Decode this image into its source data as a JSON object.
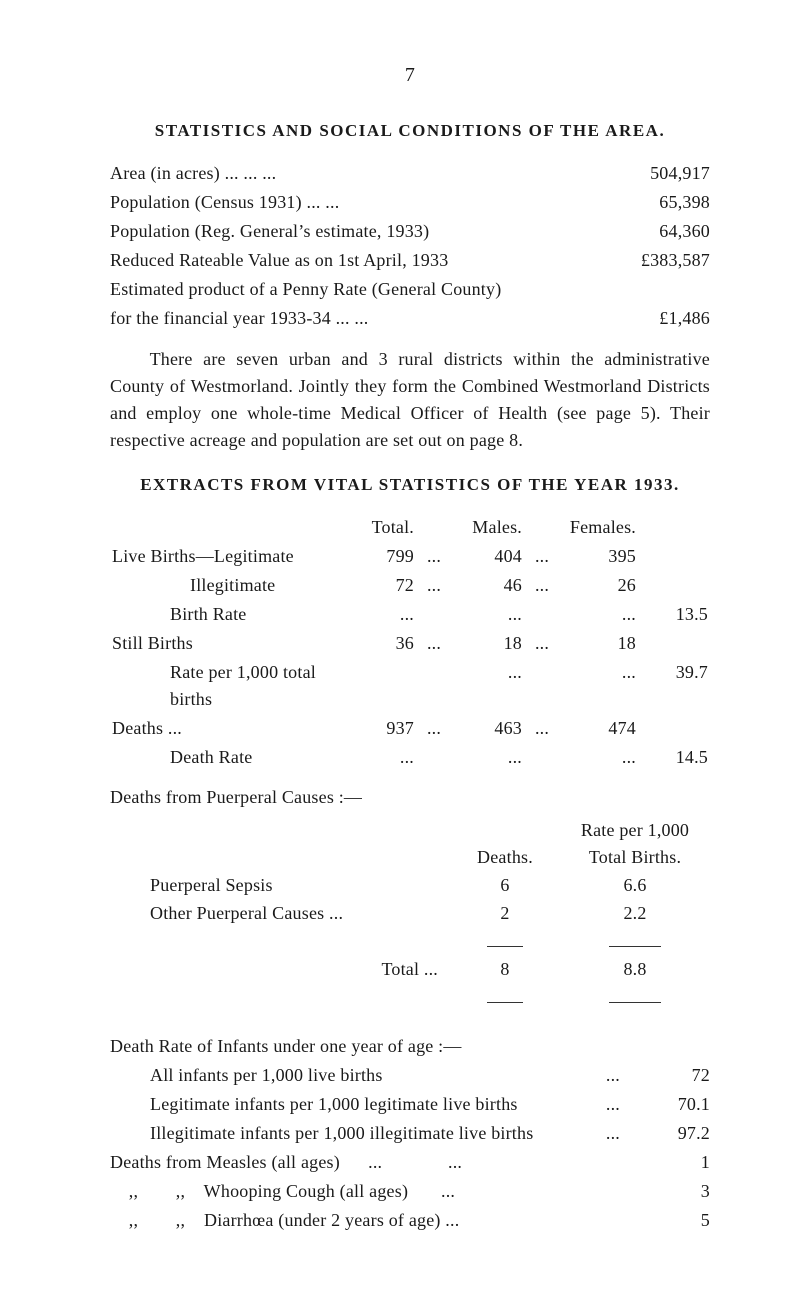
{
  "page_number": "7",
  "heading1": "STATISTICS AND SOCIAL CONDITIONS OF THE AREA.",
  "area_stats": [
    {
      "label": "Area (in acres)      ...               ...               ...",
      "value": "504,917"
    },
    {
      "label": "Population (Census 1931)       ...               ...",
      "value": "65,398"
    },
    {
      "label": "Population (Reg. General’s estimate, 1933)",
      "value": "64,360"
    },
    {
      "label": "Reduced Rateable Value as on 1st April, 1933",
      "value": "£383,587"
    },
    {
      "label": "Estimated product of a Penny Rate (General County)",
      "value": ""
    },
    {
      "label": "      for the financial year 1933-34            ...            ...",
      "value": "£1,486"
    }
  ],
  "para1": "There are seven urban and 3 rural districts within the adminis­trative County of Westmorland.  Jointly they form the Combined Westmorland Districts and employ one whole-time Medical Officer of Health (see page 5).  Their respective acreage and population are set out on page 8.",
  "heading2": "EXTRACTS FROM VITAL STATISTICS OF THE YEAR 1933.",
  "ext_headers": {
    "total": "Total.",
    "males": "Males.",
    "females": "Females."
  },
  "ext_rows": [
    {
      "label": "Live Births—Legitimate",
      "total": "799",
      "males": "404",
      "females": "395",
      "rate": ""
    },
    {
      "label": "Illegitimate",
      "indent": 2,
      "total": "72",
      "males": "46",
      "females": "26",
      "rate": ""
    },
    {
      "label": "Birth Rate",
      "indent": 1,
      "total": "...",
      "males": "...",
      "females": "...",
      "rate": "13.5"
    },
    {
      "label": "Still Births",
      "total": "36",
      "males": "18",
      "females": "18",
      "rate": ""
    },
    {
      "label": "Rate per 1,000 total births",
      "indent": 1,
      "total": "",
      "males": "...",
      "females": "...",
      "rate": "39.7"
    },
    {
      "label": "Deaths          ...",
      "total": "937",
      "males": "463",
      "females": "474",
      "rate": ""
    },
    {
      "label": "Death Rate",
      "indent": 1,
      "total": "...",
      "males": "...",
      "females": "...",
      "rate": "14.5"
    }
  ],
  "pc_title": "Deaths from Puerperal Causes :—",
  "pc_head1": "Rate per 1,000",
  "pc_head2a": "Deaths.",
  "pc_head2b": "Total Births.",
  "pc_rows": [
    {
      "label": "Puerperal Sepsis",
      "deaths": "6",
      "rate": "6.6"
    },
    {
      "label": "Other Puerperal Causes ...",
      "deaths": "2",
      "rate": "2.2"
    }
  ],
  "pc_total_label": "Total  ...",
  "pc_total_deaths": "8",
  "pc_total_rate": "8.8",
  "dr_title": "Death Rate of Infants under one year of age :—",
  "dr_rows": [
    {
      "label": "All infants per 1,000 live births",
      "value": "72"
    },
    {
      "label": "Legitimate infants per 1,000 legitimate live births",
      "value": "70.1"
    },
    {
      "label": "Illegitimate infants per 1,000 illegitimate live births",
      "value": "97.2"
    }
  ],
  "dr2_rows": [
    {
      "label": "Deaths from Measles (all ages)      ...              ...",
      "value": "1"
    },
    {
      "label": "    ,,        ,,    Whooping Cough (all ages)       ...",
      "value": "3"
    },
    {
      "label": "    ,,        ,,    Diarrhœa (under 2 years of age) ...",
      "value": "5"
    }
  ]
}
